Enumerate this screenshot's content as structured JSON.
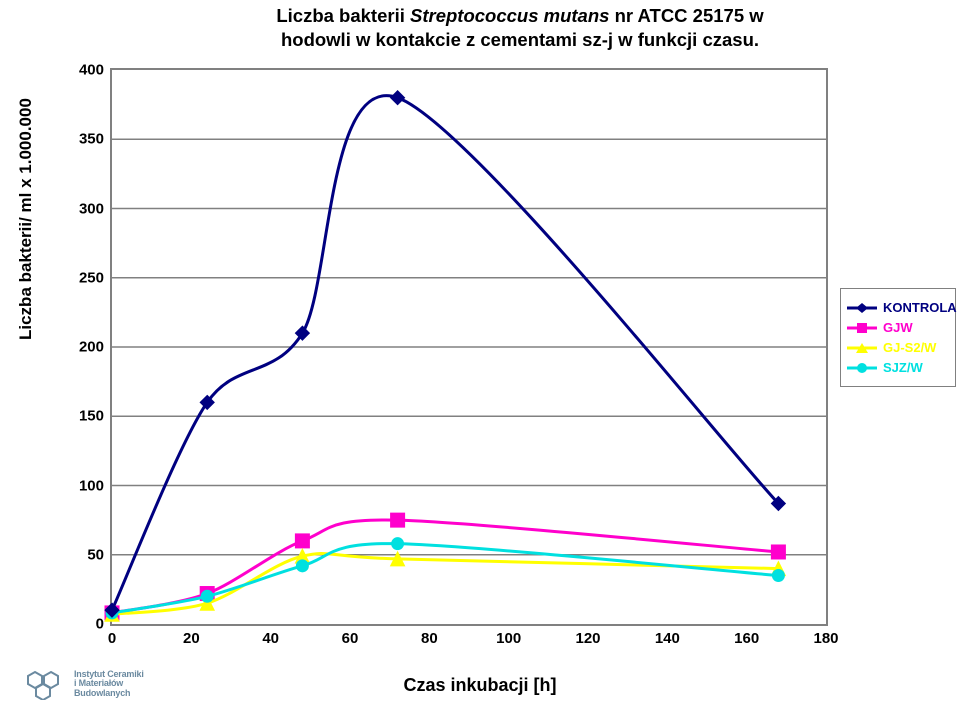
{
  "title": {
    "line1_pre": "Liczba bakterii ",
    "line1_ital": "Streptococcus mutans",
    "line1_post": " nr ATCC 25175 w",
    "line2": "hodowli w kontakcie z cementami sz-j w funkcji czasu."
  },
  "ylabel": "Liczba bakterii/ ml x 1.000.000",
  "xlabel": "Czas inkubacji [h]",
  "chart": {
    "type": "line",
    "xlim": [
      0,
      180
    ],
    "ylim": [
      0,
      400
    ],
    "xticks": [
      0,
      20,
      40,
      60,
      80,
      100,
      120,
      140,
      160,
      180
    ],
    "yticks": [
      0,
      50,
      100,
      150,
      200,
      250,
      300,
      350,
      400
    ],
    "background_color": "#ffffff",
    "grid_color": "#808080",
    "grid_width": 1.5,
    "border_color": "#808080",
    "series": [
      {
        "key": "kontrola",
        "label": "KONTROLA",
        "color": "#000080",
        "line_width": 3,
        "marker": "diamond",
        "marker_size": 7,
        "x": [
          0,
          24,
          48,
          72,
          168
        ],
        "y": [
          10,
          160,
          210,
          380,
          87
        ]
      },
      {
        "key": "gjw",
        "label": "GJW",
        "color": "#ff00cc",
        "line_width": 3,
        "marker": "square",
        "marker_size": 7,
        "x": [
          0,
          24,
          48,
          72,
          168
        ],
        "y": [
          8,
          22,
          60,
          75,
          52
        ]
      },
      {
        "key": "gjs2w",
        "label": "GJ-S2/W",
        "color": "#ffff00",
        "line_width": 3,
        "marker": "triangle",
        "marker_size": 7,
        "x": [
          0,
          24,
          48,
          72,
          168
        ],
        "y": [
          7,
          15,
          49,
          47,
          40
        ]
      },
      {
        "key": "sjzw",
        "label": "SJZ/W",
        "color": "#00e0e0",
        "line_width": 3,
        "marker": "circle",
        "marker_size": 6,
        "x": [
          0,
          24,
          48,
          72,
          168
        ],
        "y": [
          8,
          20,
          42,
          58,
          35
        ]
      }
    ]
  },
  "logo": {
    "line1": "Instytut Ceramiki",
    "line2": "i Materiałów",
    "line3": "Budowlanych"
  }
}
